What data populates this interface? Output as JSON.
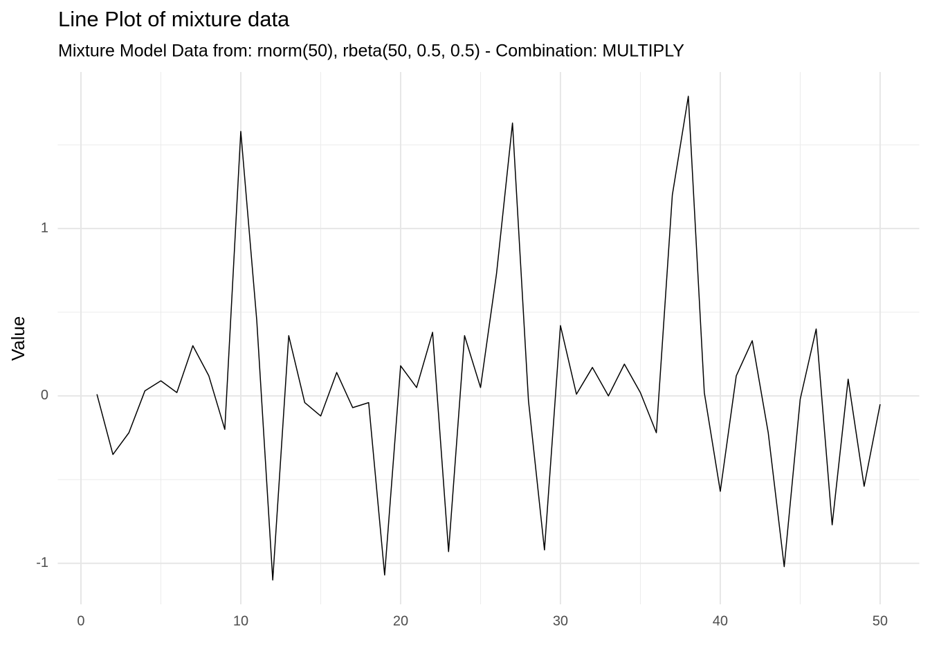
{
  "chart_data": {
    "type": "line",
    "title": "Line Plot of mixture data",
    "subtitle": "Mixture Model Data from: rnorm(50), rbeta(50, 0.5, 0.5) - Combination: MULTIPLY",
    "y_label": "Value",
    "x": [
      1,
      2,
      3,
      4,
      5,
      6,
      7,
      8,
      9,
      10,
      11,
      12,
      13,
      14,
      15,
      16,
      17,
      18,
      19,
      20,
      21,
      22,
      23,
      24,
      25,
      26,
      27,
      28,
      29,
      30,
      31,
      32,
      33,
      34,
      35,
      36,
      37,
      38,
      39,
      40,
      41,
      42,
      43,
      44,
      45,
      46,
      47,
      48,
      49,
      50
    ],
    "series": [
      {
        "color": "#000000",
        "values": [
          0.01,
          -0.35,
          -0.22,
          0.03,
          0.09,
          0.02,
          0.3,
          0.12,
          -0.2,
          1.58,
          0.45,
          -1.1,
          0.36,
          -0.04,
          -0.12,
          0.14,
          -0.07,
          -0.04,
          -1.07,
          0.18,
          0.05,
          0.38,
          -0.93,
          0.36,
          0.05,
          0.73,
          1.63,
          -0.03,
          -0.92,
          0.42,
          0.01,
          0.17,
          0.0,
          0.19,
          0.02,
          -0.22,
          1.2,
          1.79,
          0.02,
          -0.57,
          0.12,
          0.33,
          -0.22,
          -1.02,
          -0.02,
          0.4,
          -0.77,
          0.1,
          -0.54,
          -0.05
        ]
      }
    ],
    "xlim": [
      -1.45,
      52.45
    ],
    "xticks": [
      0,
      10,
      20,
      30,
      40,
      50
    ],
    "x_minor_ticks": [
      5,
      15,
      25,
      35,
      45
    ],
    "ylim": [
      -1.245,
      1.935
    ],
    "yticks": [
      -1,
      0,
      1
    ],
    "y_minor_ticks": [
      -0.5,
      0.5,
      1.5
    ],
    "grid": true
  }
}
